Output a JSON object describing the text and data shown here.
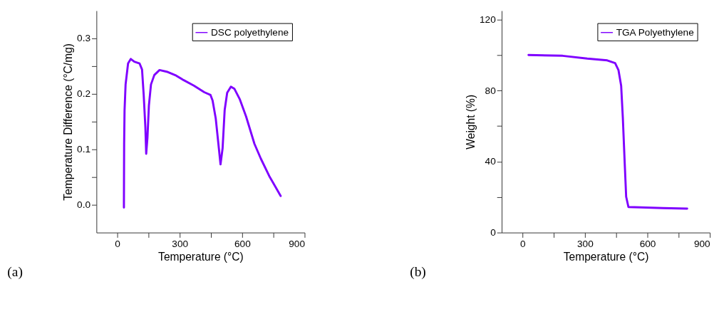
{
  "chart_data": [
    {
      "type": "line",
      "xlabel": "Temperature (°C)",
      "ylabel": "Temperature Difference (°C/mg)",
      "annotations": [
        "(a)"
      ],
      "legend": "top right",
      "grid": false,
      "line_style": "solid",
      "marker": "none",
      "xlim": [
        -100,
        900
      ],
      "xticks": [
        0,
        {
          "value": 150,
          "label": null
        },
        300,
        {
          "value": 450,
          "label": null
        },
        600,
        {
          "value": 750,
          "label": null
        },
        900
      ],
      "ylim": [
        -0.05,
        0.35
      ],
      "yticks": [
        {
          "value": 0,
          "label": "0.0"
        },
        {
          "value": 0.05,
          "label": null
        },
        0.1,
        {
          "value": 0.15,
          "label": null
        },
        0.2,
        {
          "value": 0.25,
          "label": null
        },
        0.3
      ],
      "series": [
        {
          "name": "DSC polyethylene",
          "color": "#7f00ff",
          "x": [
            32,
            32,
            33,
            35,
            40,
            52,
            65,
            82,
            107,
            119,
            127,
            135,
            139,
            145,
            152,
            162,
            178,
            203,
            238,
            283,
            318,
            368,
            418,
            448,
            458,
            473,
            488,
            496,
            506,
            516,
            528,
            546,
            563,
            589,
            619,
            659,
            690,
            730,
            785
          ],
          "values": [
            -0.005,
            0.004,
            0.11,
            0.17,
            0.217,
            0.255,
            0.263,
            0.258,
            0.255,
            0.244,
            0.198,
            0.14,
            0.092,
            0.121,
            0.179,
            0.217,
            0.234,
            0.243,
            0.24,
            0.233,
            0.225,
            0.215,
            0.203,
            0.198,
            0.188,
            0.156,
            0.102,
            0.073,
            0.102,
            0.171,
            0.202,
            0.213,
            0.209,
            0.19,
            0.159,
            0.11,
            0.083,
            0.052,
            0.016
          ]
        }
      ]
    },
    {
      "type": "line",
      "xlabel": "Temperature (°C)",
      "ylabel": "Weight (%)",
      "annotations": [
        "(b)"
      ],
      "legend": "top right",
      "grid": false,
      "line_style": "solid",
      "marker": "none",
      "xlim": [
        -100,
        900
      ],
      "xticks": [
        0,
        {
          "value": 150,
          "label": null
        },
        300,
        {
          "value": 450,
          "label": null
        },
        600,
        {
          "value": 750,
          "label": null
        },
        900
      ],
      "ylim": [
        0,
        125
      ],
      "yticks": [
        0,
        {
          "value": 20,
          "label": null
        },
        40,
        {
          "value": 60,
          "label": null
        },
        80,
        {
          "value": 100,
          "label": null
        },
        120
      ],
      "series": [
        {
          "name": "TGA Polyethylene",
          "color": "#7f00ff",
          "x": [
            29,
            193,
            311,
            407,
            445,
            461,
            474,
            482,
            491,
            498,
            509,
            568,
            675,
            791
          ],
          "values": [
            100,
            99.6,
            98,
            97,
            95.5,
            91.6,
            82.7,
            64.8,
            39.3,
            20.2,
            14.4,
            14.2,
            13.8,
            13.5
          ]
        }
      ]
    }
  ]
}
